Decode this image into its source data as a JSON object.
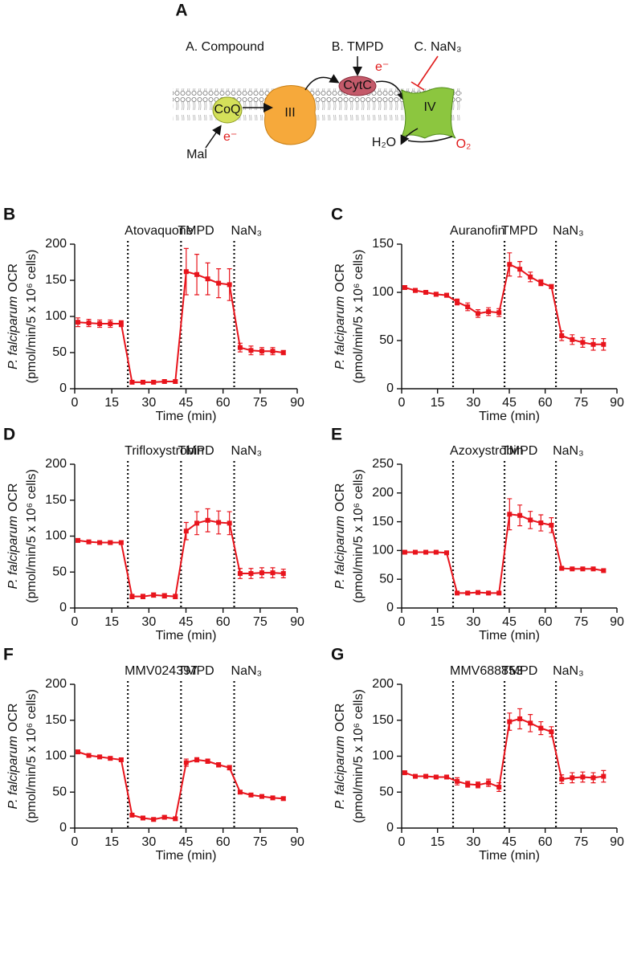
{
  "diagram": {
    "panel": "A",
    "compound": "A. Compound",
    "tmpd": "B. TMPD",
    "nan3": "C. NaN₃",
    "coq": "CoQ",
    "complex3": "III",
    "cytc": "CytC",
    "complex4": "IV",
    "mal": "Mal",
    "electron1": "e⁻",
    "electron2": "e⁻",
    "water": "H₂O",
    "oxygen": "O₂"
  },
  "chart_data": [
    {
      "type": "line",
      "panel": "B",
      "ylabel": [
        "P. falciparum",
        "OCR",
        "(pmol/min/5 x 10⁶ cells)"
      ],
      "xlabel": "Time (min)",
      "x": [
        1.3,
        5.7,
        10.1,
        14.4,
        18.8,
        23.2,
        27.6,
        31.9,
        36.3,
        40.7,
        45.1,
        49.4,
        53.8,
        58.2,
        62.6,
        66.9,
        71.3,
        75.7,
        80.1,
        84.4
      ],
      "series": [
        {
          "color": "#e8141c",
          "values": [
            92,
            91,
            90,
            90,
            90,
            9,
            9,
            9,
            10,
            10,
            162,
            158,
            152,
            146,
            144,
            57,
            53,
            52,
            52,
            50
          ],
          "errors": [
            6,
            5,
            5,
            5,
            4,
            2,
            2,
            2,
            2,
            2,
            32,
            28,
            22,
            20,
            22,
            6,
            6,
            5,
            5,
            3
          ]
        }
      ],
      "annotations": [
        {
          "text": "Atovaquone",
          "x": 21.5
        },
        {
          "text": "TMPD",
          "x": 43
        },
        {
          "text": "NaN₃",
          "x": 64.5
        }
      ],
      "xlim": [
        0,
        90
      ],
      "xticks": [
        0,
        15,
        30,
        45,
        60,
        75,
        90
      ],
      "ylim": [
        0,
        200
      ],
      "yticks": [
        0,
        50,
        100,
        150,
        200
      ]
    },
    {
      "type": "line",
      "panel": "C",
      "ylabel": [
        "P. falciparum",
        "OCR",
        "(pmol/min/5 x 10⁶ cells)"
      ],
      "xlabel": "Time (min)",
      "x": [
        1.3,
        5.7,
        10.1,
        14.4,
        18.8,
        23.2,
        27.6,
        31.9,
        36.3,
        40.7,
        45.1,
        49.4,
        53.8,
        58.2,
        62.6,
        66.9,
        71.3,
        75.7,
        80.1,
        84.4
      ],
      "series": [
        {
          "color": "#e8141c",
          "values": [
            105,
            102,
            100,
            98,
            97,
            90,
            85,
            78,
            80,
            79,
            129,
            124,
            116,
            110,
            106,
            55,
            51,
            48,
            46,
            46
          ],
          "errors": [
            2,
            2,
            2,
            2,
            2,
            3,
            4,
            4,
            4,
            4,
            12,
            8,
            5,
            3,
            2,
            5,
            5,
            5,
            6,
            6
          ]
        }
      ],
      "annotations": [
        {
          "text": "Auranofin",
          "x": 21.5
        },
        {
          "text": "TMPD",
          "x": 43
        },
        {
          "text": "NaN₃",
          "x": 64.5
        }
      ],
      "xlim": [
        0,
        90
      ],
      "xticks": [
        0,
        15,
        30,
        45,
        60,
        75,
        90
      ],
      "ylim": [
        0,
        150
      ],
      "yticks": [
        0,
        50,
        100,
        150
      ]
    },
    {
      "type": "line",
      "panel": "D",
      "ylabel": [
        "P. falciparum",
        "OCR",
        "(pmol/min/5 x 10⁶ cells)"
      ],
      "xlabel": "Time (min)",
      "x": [
        1.3,
        5.7,
        10.1,
        14.4,
        18.8,
        23.2,
        27.6,
        31.9,
        36.3,
        40.7,
        45.1,
        49.4,
        53.8,
        58.2,
        62.6,
        66.9,
        71.3,
        75.7,
        80.1,
        84.4
      ],
      "series": [
        {
          "color": "#e8141c",
          "values": [
            94,
            92,
            91,
            91,
            91,
            16,
            16,
            18,
            17,
            16,
            107,
            118,
            122,
            119,
            118,
            48,
            48,
            49,
            49,
            48
          ],
          "errors": [
            2,
            2,
            2,
            2,
            2,
            3,
            3,
            3,
            3,
            3,
            12,
            16,
            16,
            16,
            16,
            7,
            7,
            7,
            7,
            6
          ]
        }
      ],
      "annotations": [
        {
          "text": "Trifloxystrobin",
          "x": 21.5
        },
        {
          "text": "TMPD",
          "x": 43
        },
        {
          "text": "NaN₃",
          "x": 64.5
        }
      ],
      "xlim": [
        0,
        90
      ],
      "xticks": [
        0,
        15,
        30,
        45,
        60,
        75,
        90
      ],
      "ylim": [
        0,
        200
      ],
      "yticks": [
        0,
        50,
        100,
        150,
        200
      ]
    },
    {
      "type": "line",
      "panel": "E",
      "ylabel": [
        "P. falciparum",
        "OCR",
        "(pmol/min/5 x 10⁶ cells)"
      ],
      "xlabel": "Time (min)",
      "x": [
        1.3,
        5.7,
        10.1,
        14.4,
        18.8,
        23.2,
        27.6,
        31.9,
        36.3,
        40.7,
        45.1,
        49.4,
        53.8,
        58.2,
        62.6,
        66.9,
        71.3,
        75.7,
        80.1,
        84.4
      ],
      "series": [
        {
          "color": "#e8141c",
          "values": [
            97,
            97,
            97,
            97,
            96,
            26,
            26,
            27,
            26,
            26,
            163,
            161,
            153,
            148,
            144,
            69,
            68,
            68,
            68,
            65
          ],
          "errors": [
            2,
            2,
            2,
            2,
            2,
            2,
            2,
            2,
            2,
            2,
            27,
            18,
            15,
            14,
            13,
            2,
            2,
            2,
            2,
            2
          ]
        }
      ],
      "annotations": [
        {
          "text": "Azoxystrobin",
          "x": 21.5
        },
        {
          "text": "TMPD",
          "x": 43
        },
        {
          "text": "NaN₃",
          "x": 64.5
        }
      ],
      "xlim": [
        0,
        90
      ],
      "xticks": [
        0,
        15,
        30,
        45,
        60,
        75,
        90
      ],
      "ylim": [
        0,
        250
      ],
      "yticks": [
        0,
        50,
        100,
        150,
        200,
        250
      ]
    },
    {
      "type": "line",
      "panel": "F",
      "ylabel": [
        "P. falciparum",
        "OCR",
        "(pmol/min/5 x 10⁶ cells)"
      ],
      "xlabel": "Time (min)",
      "x": [
        1.3,
        5.7,
        10.1,
        14.4,
        18.8,
        23.2,
        27.6,
        31.9,
        36.3,
        40.7,
        45.1,
        49.4,
        53.8,
        58.2,
        62.6,
        66.9,
        71.3,
        75.7,
        80.1,
        84.4
      ],
      "series": [
        {
          "color": "#e8141c",
          "values": [
            106,
            101,
            99,
            97,
            95,
            18,
            14,
            12,
            15,
            13,
            91,
            95,
            93,
            88,
            84,
            50,
            46,
            44,
            42,
            41
          ],
          "errors": [
            2,
            2,
            2,
            2,
            2,
            2,
            2,
            2,
            2,
            2,
            5,
            3,
            3,
            3,
            3,
            2,
            2,
            2,
            2,
            2
          ]
        }
      ],
      "annotations": [
        {
          "text": "MMV024397",
          "x": 21.5
        },
        {
          "text": "TMPD",
          "x": 43
        },
        {
          "text": "NaN₃",
          "x": 64.5
        }
      ],
      "xlim": [
        0,
        90
      ],
      "xticks": [
        0,
        15,
        30,
        45,
        60,
        75,
        90
      ],
      "ylim": [
        0,
        200
      ],
      "yticks": [
        0,
        50,
        100,
        150,
        200
      ]
    },
    {
      "type": "line",
      "panel": "G",
      "ylabel": [
        "P. falciparum",
        "OCR",
        "(pmol/min/5 x 10⁶ cells)"
      ],
      "xlabel": "Time (min)",
      "x": [
        1.3,
        5.7,
        10.1,
        14.4,
        18.8,
        23.2,
        27.6,
        31.9,
        36.3,
        40.7,
        45.1,
        49.4,
        53.8,
        58.2,
        62.6,
        66.9,
        71.3,
        75.7,
        80.1,
        84.4
      ],
      "series": [
        {
          "color": "#e8141c",
          "values": [
            77,
            72,
            72,
            71,
            71,
            65,
            61,
            60,
            63,
            57,
            148,
            152,
            146,
            139,
            134,
            68,
            70,
            71,
            70,
            72
          ],
          "errors": [
            2,
            2,
            2,
            2,
            2,
            5,
            4,
            4,
            5,
            6,
            12,
            14,
            12,
            9,
            7,
            6,
            7,
            7,
            7,
            8
          ]
        }
      ],
      "annotations": [
        {
          "text": "MMV688853",
          "x": 21.5
        },
        {
          "text": "TMPD",
          "x": 43
        },
        {
          "text": "NaN₃",
          "x": 64.5
        }
      ],
      "xlim": [
        0,
        90
      ],
      "xticks": [
        0,
        15,
        30,
        45,
        60,
        75,
        90
      ],
      "ylim": [
        0,
        200
      ],
      "yticks": [
        0,
        50,
        100,
        150,
        200
      ]
    }
  ]
}
